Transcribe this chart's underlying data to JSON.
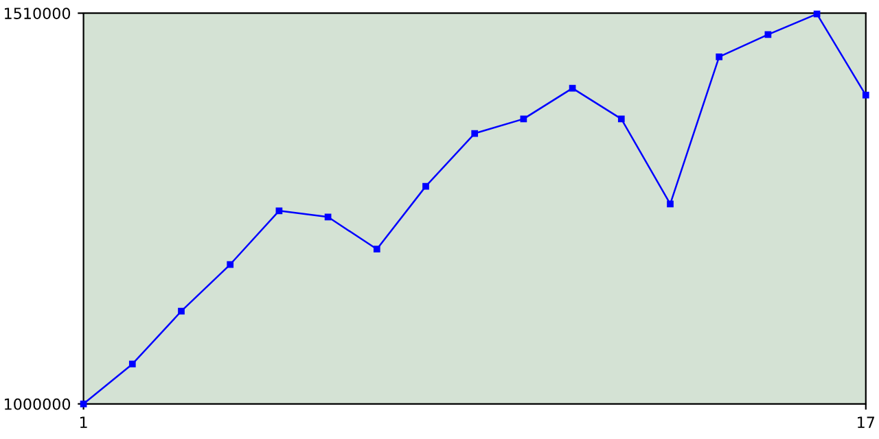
{
  "chart_data": {
    "type": "line",
    "x": [
      1,
      2,
      3,
      4,
      5,
      6,
      7,
      8,
      9,
      10,
      11,
      12,
      13,
      14,
      15,
      16,
      17
    ],
    "series": [
      {
        "color": "#0000ff",
        "values": [
          1000000,
          1052000,
          1121000,
          1182000,
          1252000,
          1244000,
          1202000,
          1284000,
          1353000,
          1372000,
          1412000,
          1372000,
          1261000,
          1453000,
          1482000,
          1509000,
          1403000
        ]
      }
    ],
    "xlim": [
      1,
      17
    ],
    "xticks": [
      1,
      17
    ],
    "ylim": [
      1000000,
      1510000
    ],
    "yticks": [
      1000000,
      1510000
    ],
    "grid": false,
    "marker": "square",
    "line_style": "solid"
  }
}
